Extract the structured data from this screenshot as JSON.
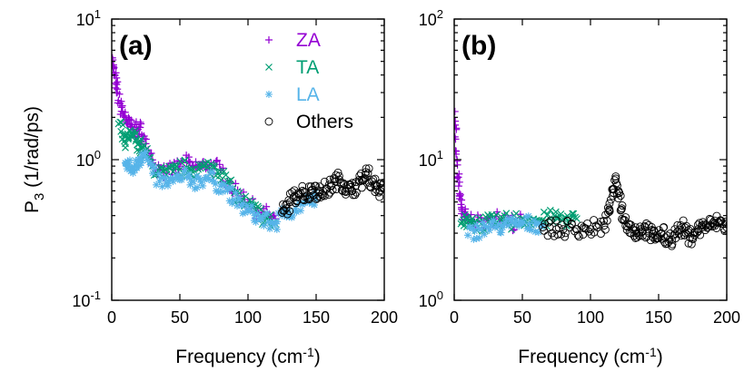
{
  "chart_data": [
    {
      "type": "scatter",
      "panel_label": "(a)",
      "title": "",
      "xlabel": "Frequency (cm",
      "xlabel_sup": "-1",
      "xlabel_end": ")",
      "ylabel": "P",
      "ylabel_sub": "3",
      "ylabel_unit": " (1/rad/ps)",
      "xlim": [
        0,
        200
      ],
      "ylim": [
        0.1,
        10
      ],
      "yscale": "log",
      "x_ticks": [
        "0",
        "50",
        "100",
        "150",
        "200"
      ],
      "y_ticks": [
        {
          "base": "10",
          "exp": "-1"
        },
        {
          "base": "10",
          "exp": "0"
        },
        {
          "base": "10",
          "exp": "1"
        }
      ],
      "legend_position": "top-center",
      "legend": [
        {
          "name": "ZA",
          "marker": "plus",
          "color": "#9400d3"
        },
        {
          "name": "TA",
          "marker": "cross",
          "color": "#009e73"
        },
        {
          "name": "LA",
          "marker": "asterisk",
          "color": "#56b4e9"
        },
        {
          "name": "Others",
          "marker": "circle",
          "color": "#000000"
        }
      ],
      "series": [
        {
          "name": "ZA",
          "x": [
            0.5,
            1,
            2,
            3,
            4,
            6,
            8,
            10,
            12,
            14,
            16,
            18,
            20,
            22,
            25,
            28,
            30,
            35,
            40,
            45,
            50,
            55,
            60,
            65,
            70,
            75,
            80,
            85,
            90,
            95,
            100,
            105,
            110,
            115,
            120
          ],
          "y": [
            5.3,
            4.5,
            4.0,
            3.5,
            3.0,
            2.5,
            2.2,
            2.0,
            1.8,
            1.7,
            1.65,
            1.6,
            1.7,
            1.5,
            1.3,
            1.1,
            0.95,
            0.85,
            0.8,
            0.85,
            0.9,
            0.95,
            0.9,
            0.88,
            0.92,
            0.9,
            0.85,
            0.7,
            0.6,
            0.55,
            0.5,
            0.45,
            0.42,
            0.4,
            0.38
          ]
        },
        {
          "name": "TA",
          "x": [
            5,
            8,
            10,
            12,
            15,
            18,
            20,
            22,
            25,
            30,
            35,
            40,
            45,
            50,
            55,
            60,
            65,
            70,
            75,
            80,
            85,
            90,
            95,
            100,
            105,
            110,
            115,
            120
          ],
          "y": [
            1.8,
            1.5,
            1.3,
            1.4,
            1.5,
            1.4,
            1.3,
            1.2,
            1.1,
            0.9,
            0.8,
            0.78,
            0.82,
            0.85,
            0.88,
            0.85,
            0.87,
            0.88,
            0.9,
            0.82,
            0.7,
            0.58,
            0.52,
            0.48,
            0.44,
            0.4,
            0.37,
            0.35
          ]
        },
        {
          "name": "LA",
          "x": [
            10,
            12,
            15,
            18,
            20,
            22,
            25,
            30,
            35,
            40,
            45,
            50,
            55,
            60,
            65,
            70,
            75,
            80,
            85,
            90,
            95,
            100,
            105,
            110,
            115,
            120,
            125,
            130,
            135,
            140,
            145,
            150
          ],
          "y": [
            0.95,
            0.9,
            0.85,
            0.9,
            1.0,
            1.1,
            1.05,
            0.8,
            0.7,
            0.68,
            0.7,
            0.72,
            0.75,
            0.7,
            0.72,
            0.75,
            0.7,
            0.65,
            0.6,
            0.52,
            0.47,
            0.43,
            0.4,
            0.38,
            0.36,
            0.35,
            0.4,
            0.43,
            0.45,
            0.48,
            0.5,
            0.52
          ]
        },
        {
          "name": "Others",
          "x": [
            125,
            128,
            131,
            134,
            137,
            140,
            143,
            146,
            149,
            152,
            155,
            158,
            161,
            164,
            167,
            170,
            173,
            176,
            179,
            182,
            185,
            188,
            191,
            194,
            197,
            200
          ],
          "y": [
            0.42,
            0.45,
            0.5,
            0.55,
            0.58,
            0.6,
            0.55,
            0.6,
            0.65,
            0.55,
            0.6,
            0.62,
            0.65,
            0.7,
            0.72,
            0.68,
            0.62,
            0.6,
            0.65,
            0.7,
            0.72,
            0.8,
            0.7,
            0.65,
            0.6,
            0.62
          ]
        }
      ]
    },
    {
      "type": "scatter",
      "panel_label": "(b)",
      "title": "",
      "xlabel": "Frequency (cm",
      "xlabel_sup": "-1",
      "xlabel_end": ")",
      "xlim": [
        0,
        200
      ],
      "ylim": [
        1,
        100
      ],
      "yscale": "log",
      "x_ticks": [
        "0",
        "50",
        "100",
        "150",
        "200"
      ],
      "y_ticks": [
        {
          "base": "10",
          "exp": "0"
        },
        {
          "base": "10",
          "exp": "1"
        },
        {
          "base": "10",
          "exp": "2"
        }
      ],
      "series": [
        {
          "name": "ZA",
          "x": [
            0.5,
            1,
            2,
            3,
            4,
            5,
            6,
            8,
            10,
            15,
            20,
            25,
            30,
            35,
            40,
            45,
            50
          ],
          "y": [
            22,
            14,
            10,
            7.5,
            5.5,
            4.8,
            4.3,
            3.9,
            3.7,
            3.6,
            3.7,
            3.8,
            3.8,
            3.7,
            3.6,
            3.6,
            3.6
          ]
        },
        {
          "name": "TA",
          "x": [
            5,
            8,
            10,
            15,
            20,
            25,
            30,
            35,
            40,
            45,
            50,
            55,
            60,
            65,
            70,
            75,
            80,
            85,
            90
          ],
          "y": [
            3.5,
            3.6,
            3.8,
            3.6,
            3.5,
            3.6,
            3.5,
            3.7,
            3.6,
            3.7,
            3.8,
            3.8,
            3.7,
            3.7,
            3.8,
            3.9,
            3.8,
            3.8,
            3.8
          ]
        },
        {
          "name": "LA",
          "x": [
            10,
            15,
            20,
            25,
            30,
            35,
            40,
            45,
            50,
            55,
            60,
            65
          ],
          "y": [
            2.9,
            3.1,
            3.2,
            3.3,
            3.3,
            3.4,
            3.4,
            3.5,
            3.5,
            3.5,
            3.5,
            3.4
          ]
        },
        {
          "name": "Others",
          "x": [
            65,
            70,
            75,
            80,
            85,
            90,
            95,
            100,
            105,
            110,
            113,
            115,
            117,
            119,
            121,
            123,
            125,
            128,
            131,
            134,
            137,
            140,
            143,
            146,
            149,
            152,
            155,
            158,
            161,
            164,
            167,
            170,
            173,
            176,
            179,
            182,
            185,
            188,
            191,
            194,
            197,
            200
          ],
          "y": [
            3.3,
            3.3,
            3.2,
            3.2,
            3.3,
            3.2,
            3.3,
            3.2,
            3.3,
            3.4,
            4.2,
            5.2,
            6.2,
            6.8,
            5.8,
            4.5,
            3.7,
            3.5,
            3.2,
            3.0,
            3.2,
            3.3,
            3.0,
            2.8,
            2.9,
            3.0,
            2.8,
            2.7,
            2.9,
            3.1,
            3.3,
            3.0,
            2.8,
            3.0,
            3.2,
            3.3,
            3.4,
            3.4,
            3.5,
            3.6,
            3.5,
            3.3
          ]
        }
      ]
    }
  ]
}
